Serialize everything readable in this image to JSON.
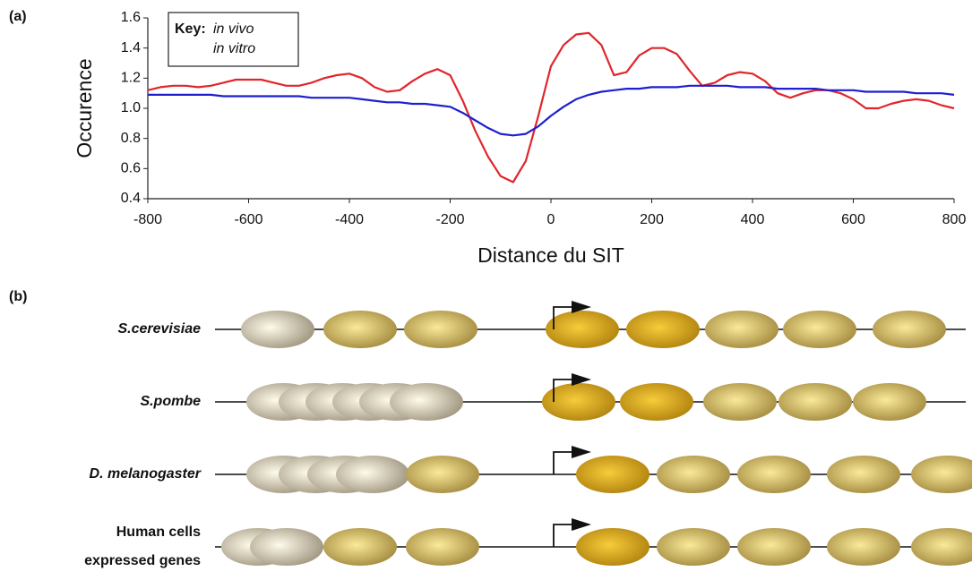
{
  "chart_data": {
    "type": "line",
    "panel_label": "(a)",
    "x_label": "Distance du SIT",
    "y_label": "Occurence",
    "legend_title": "Key:",
    "legend": "upper-left",
    "x": [
      -800,
      -775,
      -750,
      -725,
      -700,
      -675,
      -650,
      -625,
      -600,
      -575,
      -550,
      -525,
      -500,
      -475,
      -450,
      -425,
      -400,
      -375,
      -350,
      -325,
      -300,
      -275,
      -250,
      -225,
      -200,
      -175,
      -150,
      -125,
      -100,
      -75,
      -50,
      -25,
      0,
      25,
      50,
      75,
      100,
      125,
      150,
      175,
      200,
      225,
      250,
      275,
      300,
      325,
      350,
      375,
      400,
      425,
      450,
      475,
      500,
      525,
      550,
      575,
      600,
      625,
      650,
      675,
      700,
      725,
      750,
      775,
      800
    ],
    "series": [
      {
        "name": "in vivo",
        "color": "#e0262b",
        "values": [
          1.12,
          1.14,
          1.15,
          1.15,
          1.14,
          1.15,
          1.17,
          1.19,
          1.19,
          1.19,
          1.17,
          1.15,
          1.15,
          1.17,
          1.2,
          1.22,
          1.23,
          1.2,
          1.14,
          1.11,
          1.12,
          1.18,
          1.23,
          1.26,
          1.22,
          1.05,
          0.85,
          0.68,
          0.55,
          0.51,
          0.65,
          0.95,
          1.28,
          1.42,
          1.49,
          1.5,
          1.42,
          1.22,
          1.24,
          1.35,
          1.4,
          1.4,
          1.36,
          1.25,
          1.15,
          1.17,
          1.22,
          1.24,
          1.23,
          1.18,
          1.1,
          1.07,
          1.1,
          1.12,
          1.12,
          1.1,
          1.06,
          1.0,
          1.0,
          1.03,
          1.05,
          1.06,
          1.05,
          1.02,
          1.0
        ]
      },
      {
        "name": "in vitro",
        "color": "#1f1fd0",
        "values": [
          1.09,
          1.09,
          1.09,
          1.09,
          1.09,
          1.09,
          1.08,
          1.08,
          1.08,
          1.08,
          1.08,
          1.08,
          1.08,
          1.07,
          1.07,
          1.07,
          1.07,
          1.06,
          1.05,
          1.04,
          1.04,
          1.03,
          1.03,
          1.02,
          1.01,
          0.97,
          0.92,
          0.87,
          0.83,
          0.82,
          0.83,
          0.88,
          0.95,
          1.01,
          1.06,
          1.09,
          1.11,
          1.12,
          1.13,
          1.13,
          1.14,
          1.14,
          1.14,
          1.15,
          1.15,
          1.15,
          1.15,
          1.14,
          1.14,
          1.14,
          1.13,
          1.13,
          1.13,
          1.13,
          1.12,
          1.12,
          1.12,
          1.11,
          1.11,
          1.11,
          1.11,
          1.1,
          1.1,
          1.1,
          1.09
        ]
      }
    ],
    "xlim": [
      -800,
      800
    ],
    "xticks": [
      -800,
      -600,
      -400,
      -200,
      0,
      200,
      400,
      600,
      800
    ],
    "ylim": [
      0.4,
      1.6
    ],
    "yticks": [
      0.4,
      0.6,
      0.8,
      {
        "value": 1,
        "label": "1.0"
      },
      1.2,
      1.4,
      1.6
    ],
    "grid": false
  },
  "diagram": {
    "panel_label": "(b)",
    "rows": [
      {
        "label": [
          "S.cerevisiae"
        ]
      },
      {
        "label": [
          "S.pombe"
        ]
      },
      {
        "label": [
          "D. melanogaster"
        ]
      },
      {
        "label": [
          "Human cells",
          "expressed genes"
        ]
      }
    ]
  }
}
